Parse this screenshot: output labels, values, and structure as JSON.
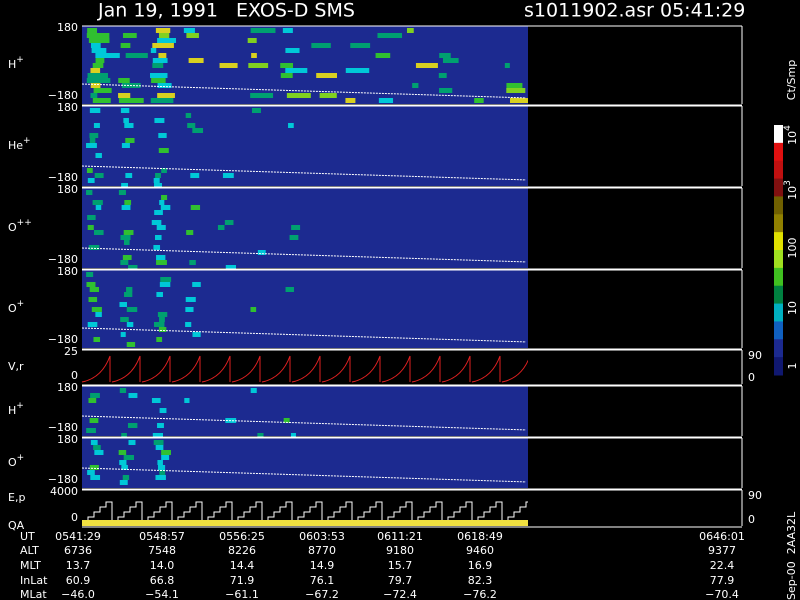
{
  "header": {
    "title": "Jan 19, 1991   EXOS-D SMS",
    "file": "s1011902.asr",
    "time": "05:41:29"
  },
  "panels": [
    {
      "label": "H",
      "sup": "+",
      "top": "180",
      "bottom": "−180"
    },
    {
      "label": "He",
      "sup": "+",
      "top": "180",
      "bottom": "−180"
    },
    {
      "label": "O",
      "sup": "++",
      "top": "180",
      "bottom": "−180"
    },
    {
      "label": "O",
      "sup": "+",
      "top": "180",
      "bottom": "−180"
    },
    {
      "label": "V,r",
      "top": "25",
      "bottom": "0",
      "right_top": "90",
      "right_bottom": "0"
    },
    {
      "label": "H",
      "sup": "+",
      "top": "180",
      "bottom": "−180"
    },
    {
      "label": "O",
      "sup": "+",
      "top": "180",
      "bottom": "−180"
    },
    {
      "label": "E,p",
      "label2": "QA",
      "top": "4000",
      "bottom": "0",
      "right_top": "90",
      "right_bottom": "0"
    }
  ],
  "colorbar": {
    "unit": "Ct/Smp",
    "labels": [
      {
        "label": "10",
        "sup": "4"
      },
      {
        "label": "10",
        "sup": "3"
      },
      {
        "label": "100"
      },
      {
        "label": "10"
      },
      {
        "label": "1"
      }
    ]
  },
  "footer": {
    "rows": [
      {
        "name": "UT",
        "cells": [
          "0541:29",
          "0548:57",
          "0556:25",
          "0603:53",
          "0611:21",
          "0618:49",
          "0646:01"
        ]
      },
      {
        "name": "ALT",
        "cells": [
          "6736",
          "7548",
          "8226",
          "8770",
          "9180",
          "9460",
          "9377"
        ]
      },
      {
        "name": "MLT",
        "cells": [
          "13.7",
          "14.0",
          "14.4",
          "14.9",
          "15.7",
          "16.9",
          "22.4"
        ]
      },
      {
        "name": "InLat",
        "cells": [
          "60.9",
          "66.8",
          "71.9",
          "76.1",
          "79.7",
          "82.3",
          "77.9"
        ]
      },
      {
        "name": "MLat",
        "cells": [
          "−46.0",
          "−54.1",
          "−61.1",
          "−67.2",
          "−72.4",
          "−76.2",
          "−70.4"
        ]
      }
    ]
  },
  "stamp": "Sep-00  2AA32L"
}
